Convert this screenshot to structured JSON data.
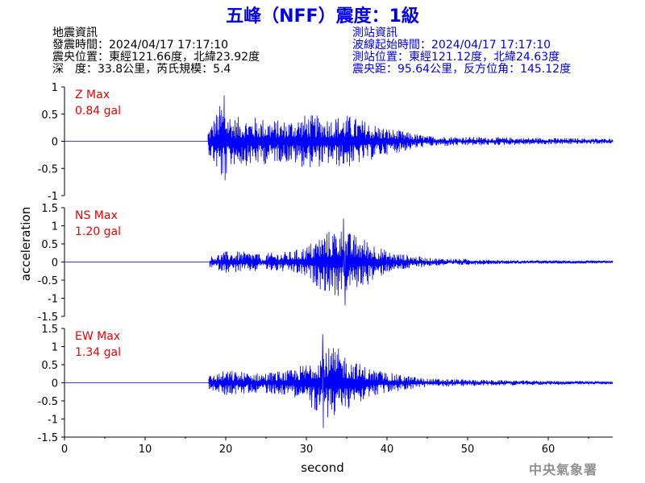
{
  "title": "五峰（NFF）震度：1級",
  "quake_info": {
    "heading": "地震資訊",
    "origin_time": "發震時間：2024/04/17 17:17:10",
    "epicenter": "震央位置：東經121.66度，北緯23.92度",
    "depth_magnitude": "深　度：33.8公里，芮氏規模：5.4"
  },
  "station_info": {
    "heading": "測站資訊",
    "arrival_time": "波線起始時間：2024/04/17 17:17:10",
    "location": "測站位置：東經121.12度，北緯24.63度",
    "distance_azimuth": "震央距：95.64公里，反方位角：145.12度"
  },
  "footer": "中央氣象署",
  "colors": {
    "title": "#0000ee",
    "trace": "#0000ff",
    "max_label": "#ee0000",
    "station_text": "#0000ee"
  },
  "chart_data": {
    "type": "line",
    "xlabel": "second",
    "ylabel": "acceleration",
    "xlim": [
      0,
      68
    ],
    "x_ticks": [
      0,
      10,
      20,
      30,
      40,
      50,
      60
    ],
    "x_tick_labels": [
      "0",
      "10",
      "20",
      "30",
      "40",
      "50",
      "60"
    ],
    "panels": [
      {
        "component": "Z",
        "max_title": "Z Max",
        "max_value": "0.84 gal",
        "ylim": [
          -1,
          1
        ],
        "y_ticks": [
          1,
          0.5,
          0,
          -0.5,
          -1
        ],
        "y_tick_labels": [
          "1",
          "0.5",
          "0",
          "-0.5",
          "-1"
        ],
        "onset": 17.8,
        "envelope": [
          [
            17.8,
            0.22
          ],
          [
            19.5,
            0.75
          ],
          [
            21,
            0.45
          ],
          [
            24,
            0.45
          ],
          [
            27,
            0.38
          ],
          [
            30,
            0.5
          ],
          [
            33,
            0.45
          ],
          [
            35,
            0.5
          ],
          [
            40,
            0.25
          ],
          [
            45,
            0.1
          ],
          [
            55,
            0.07
          ],
          [
            68,
            0.05
          ]
        ],
        "peak_positive": [
          19.8,
          0.84
        ],
        "peak_negative": [
          19.9,
          -0.72
        ]
      },
      {
        "component": "NS",
        "max_title": "NS Max",
        "max_value": "1.20 gal",
        "ylim": [
          -1.5,
          1.5
        ],
        "y_ticks": [
          1.5,
          1,
          0.5,
          0,
          -0.5,
          -1,
          -1.5
        ],
        "y_tick_labels": [
          "1.5",
          "1",
          "0.5",
          "0",
          "-0.5",
          "-1",
          "-1.5"
        ],
        "onset": 18.0,
        "envelope": [
          [
            18,
            0.15
          ],
          [
            20,
            0.3
          ],
          [
            24,
            0.28
          ],
          [
            24.5,
            0.05
          ],
          [
            25,
            0.25
          ],
          [
            28,
            0.3
          ],
          [
            30,
            0.45
          ],
          [
            32,
            0.8
          ],
          [
            34,
            1.0
          ],
          [
            35,
            0.85
          ],
          [
            38,
            0.6
          ],
          [
            40,
            0.3
          ],
          [
            45,
            0.12
          ],
          [
            55,
            0.05
          ],
          [
            68,
            0.04
          ]
        ],
        "peak_positive": [
          34.6,
          1.2
        ],
        "peak_negative": [
          34.8,
          -1.2
        ]
      },
      {
        "component": "EW",
        "max_title": "EW Max",
        "max_value": "1.34 gal",
        "ylim": [
          -1.5,
          1.5
        ],
        "y_ticks": [
          1.5,
          1,
          0.5,
          0,
          -0.5,
          -1,
          -1.5
        ],
        "y_tick_labels": [
          "1.5",
          "1",
          "0.5",
          "0",
          "-0.5",
          "-1",
          "-1.5"
        ],
        "onset": 17.9,
        "envelope": [
          [
            17.9,
            0.2
          ],
          [
            20,
            0.35
          ],
          [
            24,
            0.28
          ],
          [
            28,
            0.35
          ],
          [
            30,
            0.55
          ],
          [
            32,
            1.0
          ],
          [
            34,
            0.95
          ],
          [
            36,
            0.6
          ],
          [
            38,
            0.4
          ],
          [
            41,
            0.25
          ],
          [
            45,
            0.12
          ],
          [
            55,
            0.07
          ],
          [
            68,
            0.04
          ]
        ],
        "peak_positive": [
          32.0,
          1.34
        ],
        "peak_negative": [
          32.1,
          -1.25
        ]
      }
    ]
  }
}
